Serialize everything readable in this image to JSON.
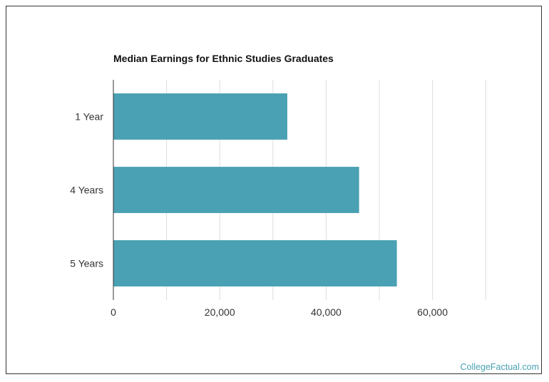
{
  "chart_data": {
    "type": "bar",
    "orientation": "horizontal",
    "title": "Median Earnings for Ethnic Studies Graduates",
    "categories": [
      "1 Year",
      "4 Years",
      "5 Years"
    ],
    "values": [
      32700,
      46200,
      53300
    ],
    "xlim": [
      0,
      70000
    ],
    "xticks": [
      0,
      20000,
      40000,
      60000
    ],
    "xtick_labels": [
      "0",
      "20,000",
      "40,000",
      "60,000"
    ],
    "xlabel": "",
    "ylabel": "",
    "grid": true,
    "legend": "none",
    "bar_color": "#4aa1b3",
    "grid_color": "#dddddd",
    "axis_color": "#333333"
  },
  "watermark": "CollegeFactual.com"
}
